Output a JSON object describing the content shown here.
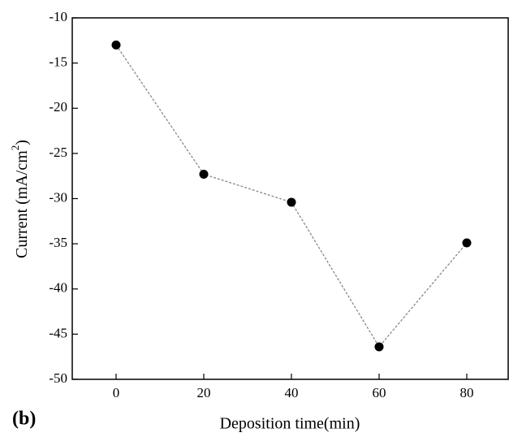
{
  "chart_data": {
    "type": "line",
    "panel_label": "(b)",
    "x_label": "Deposition time(min)",
    "y_label": "Current (mA/cm",
    "y_label_sup": "2",
    "y_label_end": ")",
    "x": [
      0,
      20,
      40,
      60,
      80
    ],
    "series": [
      {
        "name": "Current",
        "color": "#000000",
        "values": [
          -13,
          -27.3,
          -30.4,
          -46.4,
          -34.9
        ]
      }
    ],
    "xlim": [
      -10,
      90
    ],
    "xticks": [
      0,
      20,
      40,
      60,
      80
    ],
    "ylim": [
      -50,
      -10
    ],
    "yticks": [
      -50,
      -45,
      -40,
      -35,
      -30,
      -25,
      -20,
      -15,
      -10
    ]
  }
}
